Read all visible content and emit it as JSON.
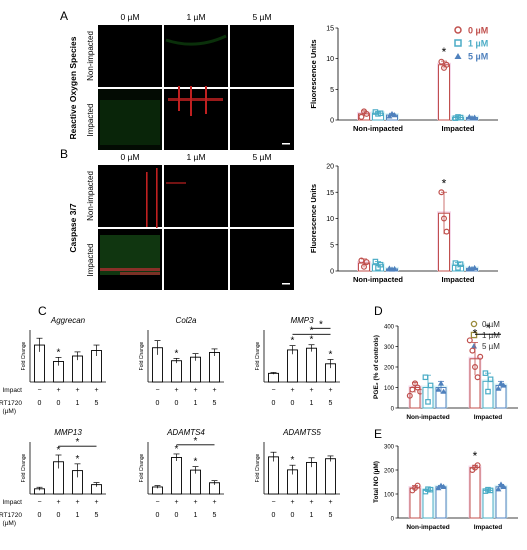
{
  "panels": {
    "A": {
      "letter": "A",
      "row_title": "Reactive Oxygen Species",
      "rows": [
        "Non-impacted",
        "Impacted"
      ],
      "cols": [
        "0 µM",
        "1 µM",
        "5 µM"
      ]
    },
    "B": {
      "letter": "B",
      "row_title": "Caspase 3/7",
      "rows": [
        "Non-impacted",
        "Impacted"
      ],
      "cols": [
        "0 µM",
        "1 µM",
        "5 µM"
      ]
    },
    "C": {
      "letter": "C"
    },
    "D": {
      "letter": "D"
    },
    "E": {
      "letter": "E"
    }
  },
  "legend": [
    "0 µM",
    "1 µM",
    "5 µM"
  ],
  "colors": {
    "c0": "#c0504d",
    "c1": "#4bacc6",
    "c5": "#4f81bd",
    "pink": "#f2d0e6",
    "cyan": "#d5f1f5"
  },
  "shared": {
    "impact_label": "Impact",
    "srt_label": "SRT1720",
    "srt_unit": "(µM)",
    "impact_signs": [
      "−",
      "+",
      "+",
      "+"
    ],
    "doses": [
      "0",
      "0",
      "1",
      "5"
    ],
    "fold_change": "Fold Change",
    "star": "*"
  },
  "chart_data": [
    {
      "type": "bar",
      "id": "A",
      "ylabel": "Fluorescence Units",
      "ylim": [
        0,
        15
      ],
      "yticks": [
        0,
        5,
        10,
        15
      ],
      "groups": [
        "Non-impacted",
        "Impacted"
      ],
      "series": [
        {
          "name": "0 µM",
          "values": [
            1.0,
            9.0
          ]
        },
        {
          "name": "1 µM",
          "values": [
            1.1,
            0.4
          ]
        },
        {
          "name": "5 µM",
          "values": [
            0.8,
            0.4
          ]
        }
      ],
      "points": [
        [
          [
            0.5,
            1.4,
            1.0
          ],
          [
            1.3,
            1.0,
            1.1
          ],
          [
            0.6,
            1.0,
            0.8
          ]
        ],
        [
          [
            9.5,
            8.5,
            9.0
          ],
          [
            0.3,
            0.5,
            0.4
          ],
          [
            0.5,
            0.3,
            0.4
          ]
        ]
      ],
      "errors": [
        [
          0.5,
          0.2,
          0.3
        ],
        [
          0.6,
          0.1,
          0.1
        ]
      ],
      "stars": [
        [
          1,
          0
        ]
      ]
    },
    {
      "type": "bar",
      "id": "B",
      "ylabel": "Fluorescence Units",
      "ylim": [
        0,
        20
      ],
      "yticks": [
        0,
        5,
        10,
        15,
        20
      ],
      "groups": [
        "Non-impacted",
        "Impacted"
      ],
      "series": [
        {
          "name": "0 µM",
          "values": [
            1.5,
            11.0
          ]
        },
        {
          "name": "1 µM",
          "values": [
            1.2,
            1.1
          ]
        },
        {
          "name": "5 µM",
          "values": [
            0.4,
            0.5
          ]
        }
      ],
      "points": [
        [
          [
            2.0,
            0.8,
            1.7
          ],
          [
            1.8,
            0.6,
            1.2
          ],
          [
            0.5,
            0.3,
            0.4
          ]
        ],
        [
          [
            15.0,
            10.0,
            7.5
          ],
          [
            1.5,
            0.6,
            1.3
          ],
          [
            0.5,
            0.4,
            0.6
          ]
        ]
      ],
      "errors": [
        [
          0.8,
          0.6,
          0.1
        ],
        [
          4.0,
          0.5,
          0.1
        ]
      ],
      "stars": [
        [
          1,
          0
        ]
      ]
    },
    {
      "type": "bar",
      "id": "C1",
      "title": "Aggrecan",
      "ylabel": "Fold Change",
      "values": [
        2.7,
        1.5,
        1.9,
        2.3
      ],
      "errors": [
        0.5,
        0.3,
        0.3,
        0.4
      ],
      "ymax": 3.8,
      "stars": [
        1
      ],
      "brackets": []
    },
    {
      "type": "bar",
      "id": "C2",
      "title": "Col2a",
      "ylabel": "Fold Change",
      "values": [
        1.45,
        0.9,
        1.05,
        1.25
      ],
      "errors": [
        0.3,
        0.1,
        0.15,
        0.15
      ],
      "ymax": 2.2,
      "stars": [
        1
      ],
      "brackets": []
    },
    {
      "type": "bar",
      "id": "C3",
      "title": "MMP3",
      "ylabel": "Fold Change",
      "values": [
        1.0,
        3.7,
        3.9,
        2.1
      ],
      "errors": [
        0.1,
        0.5,
        0.4,
        0.5
      ],
      "ymax": 6.0,
      "stars": [
        1,
        2,
        3
      ],
      "brackets": [
        [
          1,
          3,
          5.5
        ],
        [
          2,
          3,
          6.2
        ]
      ]
    },
    {
      "type": "bar",
      "id": "C4",
      "title": "MMP13",
      "ylabel": "Fold Change",
      "values": [
        1.0,
        6.2,
        4.5,
        1.8
      ],
      "errors": [
        0.3,
        1.3,
        1.3,
        0.4
      ],
      "ymax": 10,
      "stars": [
        1,
        2
      ],
      "brackets": [
        [
          1,
          3,
          9.2
        ]
      ]
    },
    {
      "type": "bar",
      "id": "C5",
      "title": "ADAMTS4",
      "ylabel": "Fold Change",
      "values": [
        1.0,
        5.2,
        3.4,
        1.6
      ],
      "errors": [
        0.2,
        0.5,
        0.5,
        0.3
      ],
      "ymax": 7.4,
      "stars": [
        1,
        2
      ],
      "brackets": [
        [
          1,
          3,
          7.0
        ]
      ]
    },
    {
      "type": "bar",
      "id": "C6",
      "title": "ADAMTS5",
      "ylabel": "Fold Change",
      "values": [
        2.0,
        1.3,
        1.7,
        1.9
      ],
      "errors": [
        0.25,
        0.25,
        0.25,
        0.15
      ],
      "ymax": 2.8,
      "stars": [
        1
      ],
      "brackets": []
    },
    {
      "type": "bar",
      "id": "D",
      "ylabel": "PGE₂ (% of controls)",
      "ylim": [
        0,
        400
      ],
      "yticks": [
        0,
        100,
        200,
        300,
        400
      ],
      "groups": [
        "Non-impacted",
        "Impacted"
      ],
      "series": [
        {
          "name": "0 µM",
          "values": [
            100,
            240
          ]
        },
        {
          "name": "1 µM",
          "values": [
            100,
            130
          ]
        },
        {
          "name": "5 µM",
          "values": [
            100,
            110
          ]
        }
      ],
      "points": [
        [
          [
            60,
            90,
            120,
            100,
            80
          ],
          [
            150,
            30,
            110
          ],
          [
            90,
            120,
            80
          ]
        ],
        [
          [
            330,
            280,
            200,
            150,
            250
          ],
          [
            170,
            80,
            140
          ],
          [
            95,
            120,
            110
          ]
        ]
      ],
      "errors": [
        [
          25,
          60,
          30
        ],
        [
          80,
          40,
          20
        ]
      ],
      "stars": [
        [
          1,
          0
        ]
      ],
      "bracket": [
        1,
        0,
        1,
        2,
        360
      ]
    },
    {
      "type": "bar",
      "id": "E",
      "ylabel": "Total NO (µM)",
      "ylim": [
        0,
        300
      ],
      "yticks": [
        0,
        100,
        200,
        300
      ],
      "groups": [
        "Non-impacted",
        "Impacted"
      ],
      "series": [
        {
          "name": "0 µM",
          "values": [
            125,
            210
          ]
        },
        {
          "name": "1 µM",
          "values": [
            115,
            115
          ]
        },
        {
          "name": "5 µM",
          "values": [
            130,
            130
          ]
        }
      ],
      "points": [
        [
          [
            115,
            125,
            135
          ],
          [
            110,
            120,
            118
          ],
          [
            125,
            135,
            130
          ]
        ],
        [
          [
            200,
            210,
            220
          ],
          [
            112,
            118,
            115
          ],
          [
            120,
            140,
            130
          ]
        ]
      ],
      "errors": [
        [
          10,
          6,
          6
        ],
        [
          10,
          4,
          10
        ]
      ],
      "stars": [
        [
          1,
          0
        ]
      ]
    }
  ]
}
